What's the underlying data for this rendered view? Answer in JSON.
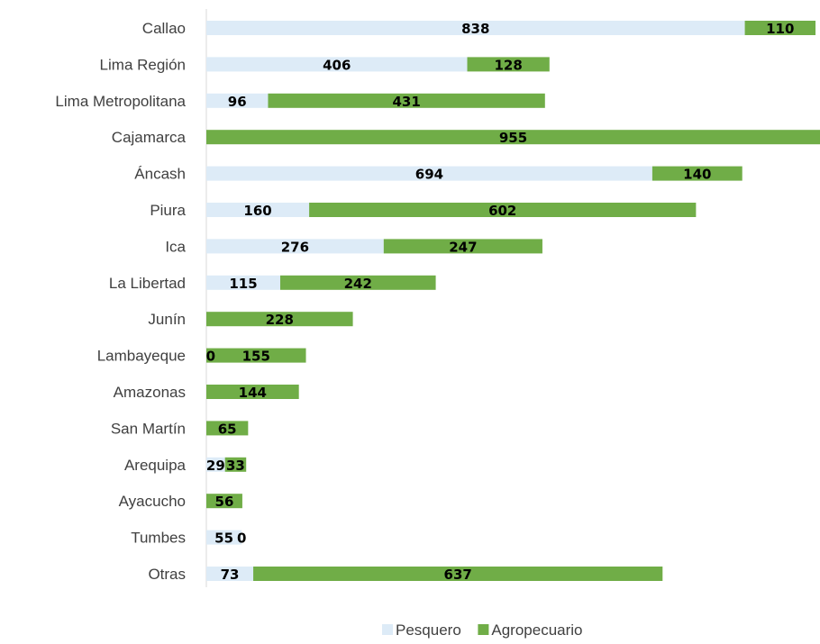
{
  "chart_data": {
    "type": "bar",
    "orientation": "horizontal",
    "stacked": true,
    "categories": [
      "Callao",
      "Lima Región",
      "Lima Metropolitana",
      "Cajamarca",
      "Áncash",
      "Piura",
      "Ica",
      "La Libertad",
      "Junín",
      "Lambayeque",
      "Amazonas",
      "San Martín",
      "Arequipa",
      "Ayacucho",
      "Tumbes",
      "Otras"
    ],
    "series": [
      {
        "name": "Pesquero",
        "color": "#DDEBF7",
        "values": [
          838,
          406,
          96,
          null,
          694,
          160,
          276,
          115,
          null,
          0,
          null,
          null,
          29,
          null,
          55,
          73
        ]
      },
      {
        "name": "Agropecuario",
        "color": "#70AD47",
        "values": [
          110,
          128,
          431,
          955,
          140,
          602,
          247,
          242,
          228,
          155,
          144,
          65,
          33,
          56,
          0,
          637
        ]
      }
    ],
    "xlim": [
      0,
      955
    ],
    "grid": false,
    "legend_position": "bottom"
  }
}
